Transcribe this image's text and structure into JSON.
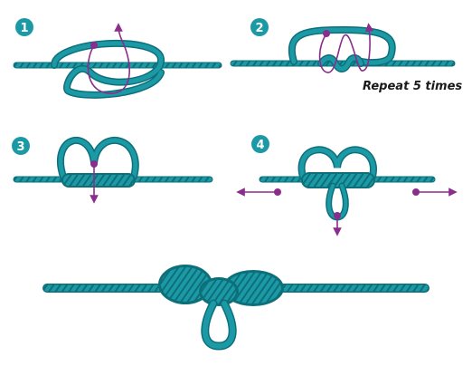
{
  "steps": [
    {
      "number": "1"
    },
    {
      "number": "2",
      "note": "Repeat 5 times"
    },
    {
      "number": "3"
    },
    {
      "number": "4"
    }
  ],
  "colors": {
    "rope": "#1b9aa6",
    "rope_dark": "#0d6f79",
    "rope_light": "#5fc9d2",
    "guide": "#8a2d8c",
    "badge": "#1b9aa6",
    "text": "#1a1a1a"
  }
}
